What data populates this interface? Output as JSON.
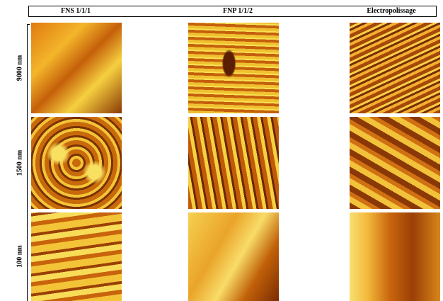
{
  "columns": [
    "FNS 1/1/1",
    "FNP 1/1/2",
    "Electropolissage"
  ],
  "rows": [
    "9000 nm",
    "1500 nm",
    "100 nm"
  ]
}
